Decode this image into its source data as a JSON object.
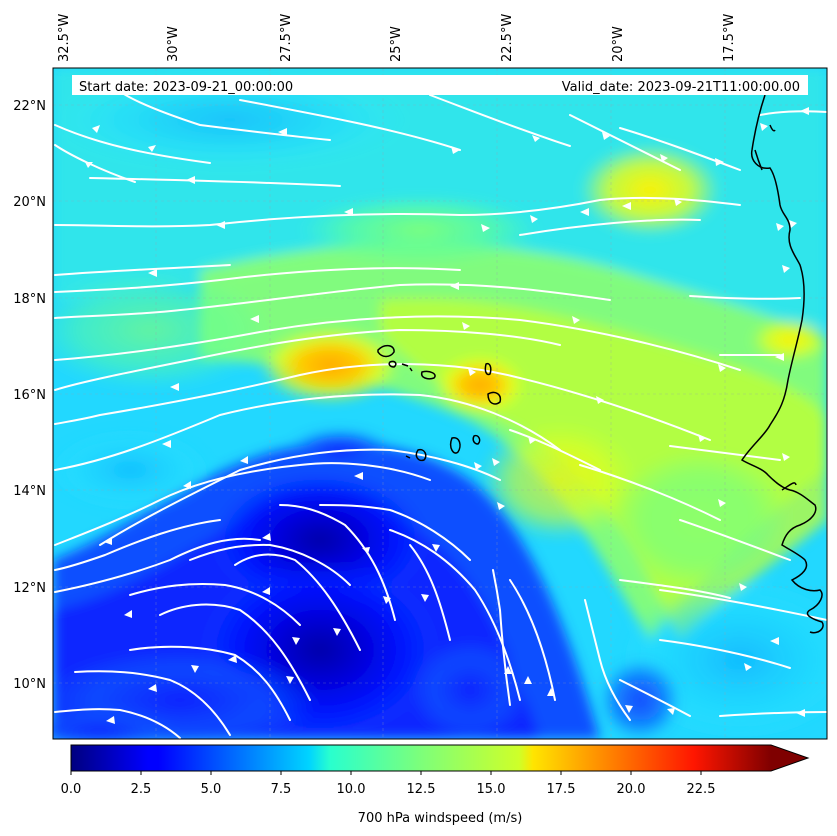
{
  "header": {
    "start_date": "Start date: 2023-09-21_00:00:00",
    "valid_date": "Valid_date: 2023-09-21T11:00:00.00"
  },
  "map": {
    "lon_labels": [
      "32.5°W",
      "30°W",
      "27.5°W",
      "25°W",
      "22.5°W",
      "20°W",
      "17.5°W"
    ],
    "lat_labels": [
      "22°N",
      "20°N",
      "18°N",
      "16°N",
      "14°N",
      "12°N",
      "10°N"
    ],
    "extent": {
      "lon_min": -32.6,
      "lon_max": -15.0,
      "lat_min": 8.9,
      "lat_max": 22.8
    },
    "field": "700 hPa windspeed",
    "streamline_color": "#ffffff",
    "coastline_color": "#000000"
  },
  "colorbar": {
    "label": "700 hPa windspeed (m/s)",
    "ticks": [
      "0.0",
      "2.5",
      "5.0",
      "7.5",
      "10.0",
      "12.5",
      "15.0",
      "17.5",
      "20.0",
      "22.5"
    ],
    "range": [
      0,
      25
    ],
    "extend": "max",
    "colormap": "jet"
  }
}
